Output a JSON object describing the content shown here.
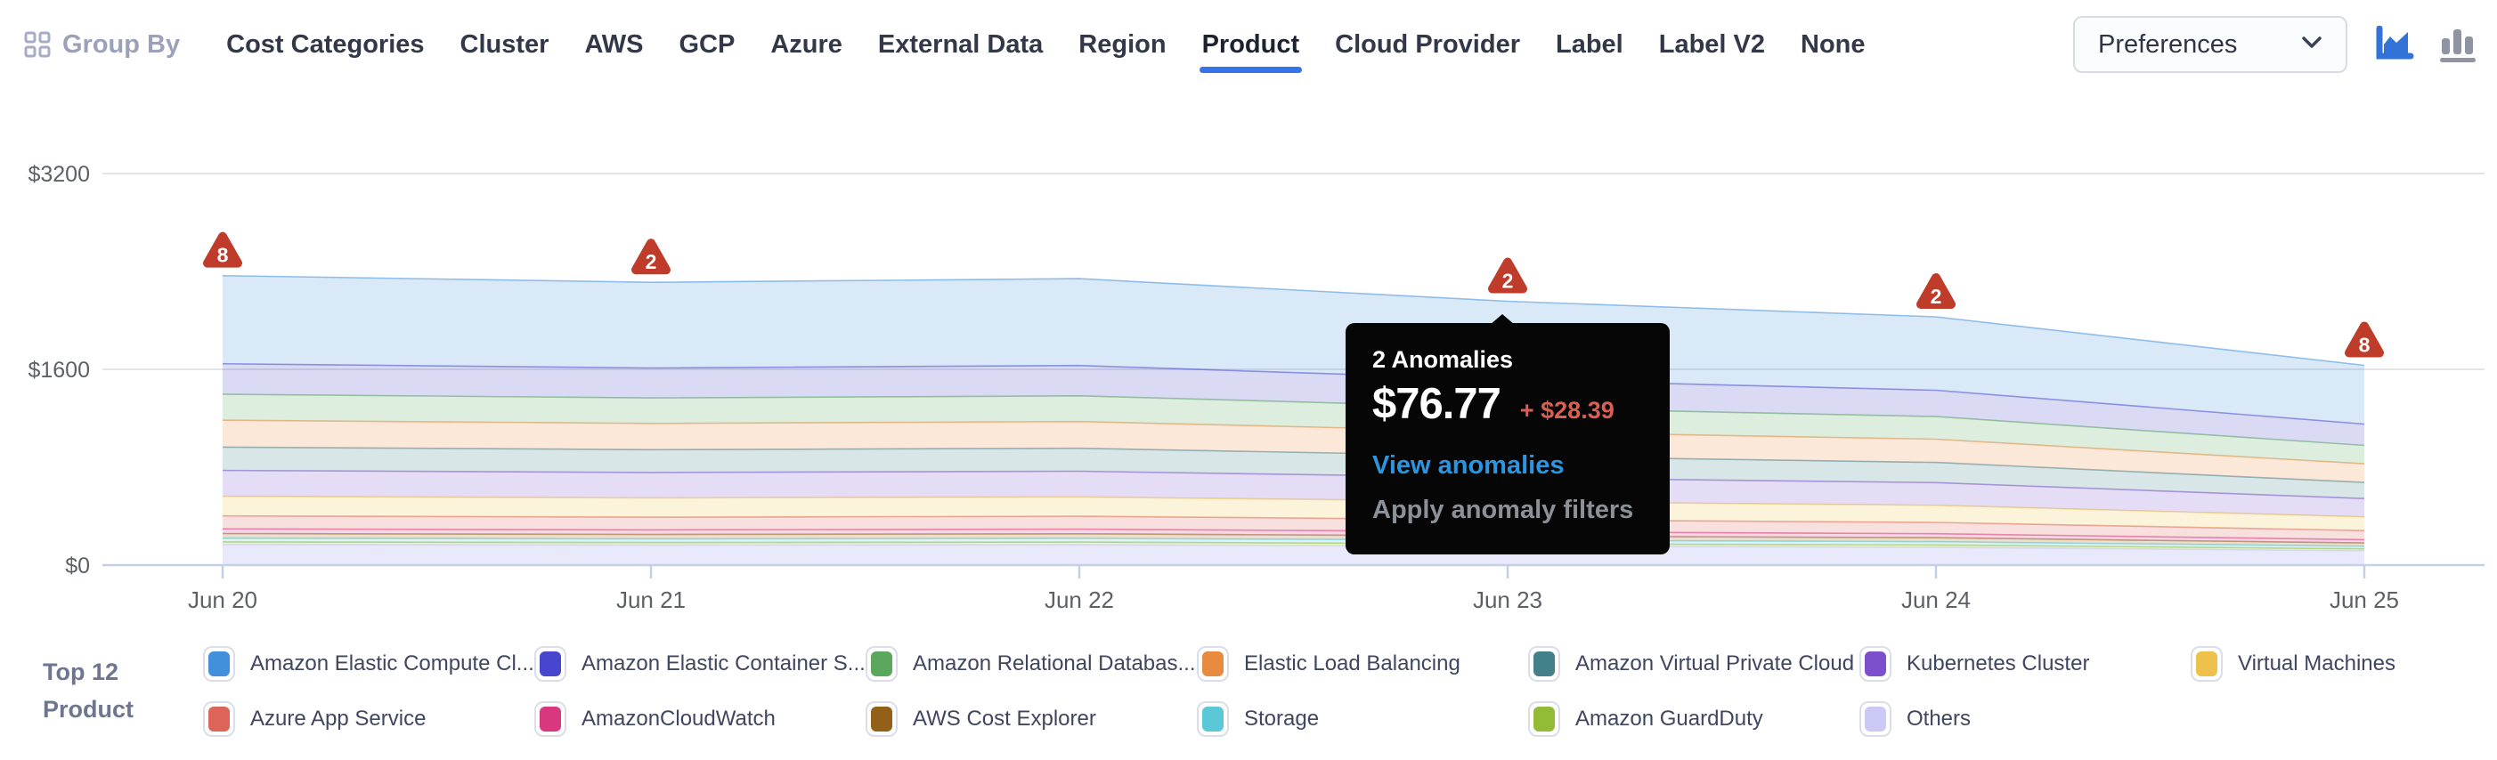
{
  "header": {
    "group_by_label": "Group By",
    "tabs": [
      {
        "label": "Cost Categories",
        "active": false
      },
      {
        "label": "Cluster",
        "active": false
      },
      {
        "label": "AWS",
        "active": false
      },
      {
        "label": "GCP",
        "active": false
      },
      {
        "label": "Azure",
        "active": false
      },
      {
        "label": "External Data",
        "active": false
      },
      {
        "label": "Region",
        "active": false
      },
      {
        "label": "Product",
        "active": true
      },
      {
        "label": "Cloud Provider",
        "active": false
      },
      {
        "label": "Label",
        "active": false
      },
      {
        "label": "Label V2",
        "active": false
      },
      {
        "label": "None",
        "active": false
      }
    ],
    "preferences_label": "Preferences",
    "chart_type_icons": [
      {
        "name": "area-chart",
        "active": true,
        "color": "#3273d8"
      },
      {
        "name": "bar-chart",
        "active": false,
        "color": "#8f94a3"
      }
    ],
    "accent_color": "#3573e8"
  },
  "chart_data": {
    "type": "area",
    "stacked": true,
    "x": [
      "Jun 20",
      "Jun 21",
      "Jun 22",
      "Jun 23",
      "Jun 24",
      "Jun 25"
    ],
    "y_ticks": [
      "$0",
      "$1600",
      "$3200"
    ],
    "ylim": [
      0,
      3200
    ],
    "grid": true,
    "legend_position": "bottom",
    "series": [
      {
        "name": "Amazon Elastic Compute Cl...",
        "color": "#4290dc",
        "values": [
          720,
          700,
          710,
          640,
          600,
          480
        ]
      },
      {
        "name": "Amazon Elastic Container S...",
        "color": "#4845cf",
        "values": [
          250,
          245,
          248,
          230,
          215,
          175
        ]
      },
      {
        "name": "Amazon Relational Databas...",
        "color": "#5ba85c",
        "values": [
          212,
          208,
          210,
          196,
          185,
          150
        ]
      },
      {
        "name": "Elastic Load Balancing",
        "color": "#e98a41",
        "values": [
          220,
          215,
          218,
          200,
          190,
          152
        ]
      },
      {
        "name": "Amazon Virtual Private Cloud",
        "color": "#43808a",
        "values": [
          190,
          186,
          188,
          175,
          165,
          132
        ]
      },
      {
        "name": "Kubernetes Cluster",
        "color": "#7c50cc",
        "values": [
          212,
          208,
          210,
          196,
          185,
          150
        ]
      },
      {
        "name": "Virtual Machines",
        "color": "#eec14d",
        "values": [
          160,
          157,
          158,
          148,
          140,
          112
        ]
      },
      {
        "name": "Azure App Service",
        "color": "#dd6458",
        "values": [
          106,
          104,
          105,
          98,
          92,
          74
        ]
      },
      {
        "name": "AmazonCloudWatch",
        "color": "#d93780",
        "values": [
          38,
          37,
          38,
          35,
          33,
          27
        ]
      },
      {
        "name": "AWS Cost Explorer",
        "color": "#93601a",
        "values": [
          38,
          37,
          38,
          35,
          33,
          27
        ]
      },
      {
        "name": "Storage",
        "color": "#5bc8d8",
        "values": [
          30,
          29,
          30,
          28,
          26,
          21
        ]
      },
      {
        "name": "Amazon GuardDuty",
        "color": "#93bb35",
        "values": [
          23,
          22,
          23,
          21,
          20,
          16
        ]
      },
      {
        "name": "Others",
        "color": "#cbcaf7",
        "values": [
          167,
          163,
          165,
          154,
          145,
          117
        ]
      }
    ],
    "stack_bottom_to_top": [
      "Others",
      "Amazon GuardDuty",
      "Storage",
      "AWS Cost Explorer",
      "AmazonCloudWatch",
      "Azure App Service",
      "Virtual Machines",
      "Kubernetes Cluster",
      "Amazon Virtual Private Cloud",
      "Elastic Load Balancing",
      "Amazon Relational Databas...",
      "Amazon Elastic Container S...",
      "Amazon Elastic Compute Cl..."
    ],
    "anomalies": [
      {
        "x": "Jun 20",
        "count": "8"
      },
      {
        "x": "Jun 21",
        "count": "2"
      },
      {
        "x": "Jun 23",
        "count": "2"
      },
      {
        "x": "Jun 24",
        "count": "2"
      },
      {
        "x": "Jun 25",
        "count": "8"
      }
    ],
    "anomaly_color": "#bf3b2a",
    "axis_label_color": "#5d6166",
    "gridline_color": "#e2e4e8",
    "axis_line_color": "#c5d0e6"
  },
  "tooltip": {
    "anchor_x": "Jun 23",
    "title": "2 Anomalies",
    "value": "$76.77",
    "delta": "+ $28.39",
    "link_label": "View anomalies",
    "action_label": "Apply anomaly filters",
    "delta_color": "#d95f52",
    "link_color": "#2b95e0"
  },
  "legend": {
    "title_line1": "Top 12",
    "title_line2": "Product"
  }
}
